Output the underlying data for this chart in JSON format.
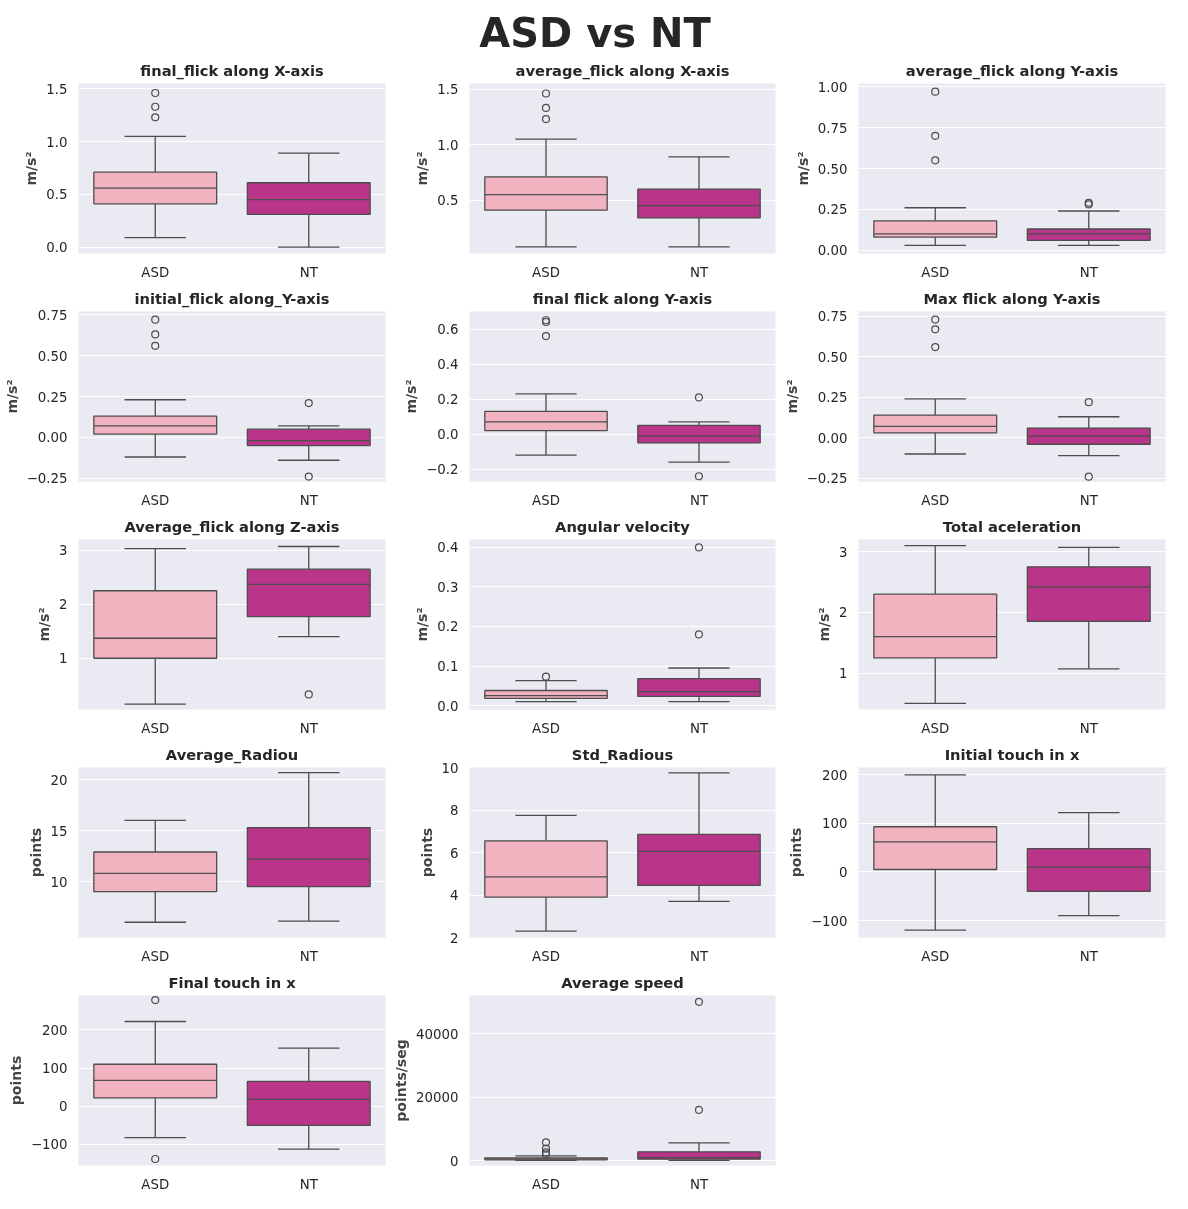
{
  "chart_data": [
    {
      "type": "other",
      "title": "ASD vs NT"
    },
    {
      "type": "box",
      "title": "final_flick along X-axis",
      "ylabel": "m/s²",
      "categories": [
        "ASD",
        "NT"
      ],
      "colors": [
        "#f2b3c0",
        "#b83589"
      ],
      "grid": "y",
      "ylim": [
        -0.06,
        1.55
      ],
      "yticks": [
        {
          "value": 0,
          "label": "0.0"
        },
        0.5,
        {
          "value": 1,
          "label": "1.0"
        },
        1.5
      ],
      "boxes": [
        {
          "low": 0.09,
          "q1": 0.41,
          "median": 0.56,
          "q3": 0.71,
          "high": 1.05,
          "outliers": [
            1.23,
            1.33,
            1.46
          ]
        },
        {
          "low": 0.0,
          "q1": 0.31,
          "median": 0.45,
          "q3": 0.61,
          "high": 0.89
        }
      ]
    },
    {
      "type": "box",
      "title": "average_flick along X-axis",
      "ylabel": "m/s²",
      "categories": [
        "ASD",
        "NT"
      ],
      "colors": [
        "#f2b3c0",
        "#b83589"
      ],
      "grid": "y",
      "ylim": [
        0.02,
        1.55
      ],
      "yticks": [
        0.5,
        {
          "value": 1,
          "label": "1.0"
        },
        1.5
      ],
      "boxes": [
        {
          "low": 0.08,
          "q1": 0.41,
          "median": 0.55,
          "q3": 0.71,
          "high": 1.05,
          "outliers": [
            1.23,
            1.33,
            1.46
          ]
        },
        {
          "low": 0.08,
          "q1": 0.34,
          "median": 0.45,
          "q3": 0.6,
          "high": 0.89
        }
      ]
    },
    {
      "type": "box",
      "title": "average_flick along Y-axis",
      "ylabel": "m/s²",
      "categories": [
        "ASD",
        "NT"
      ],
      "colors": [
        "#f2b3c0",
        "#b83589"
      ],
      "grid": "y",
      "ylim": [
        -0.02,
        1.02
      ],
      "yticks": [
        {
          "value": 0,
          "label": "0.00"
        },
        0.25,
        {
          "value": 0.5,
          "label": "0.50"
        },
        0.75,
        {
          "value": 1,
          "label": "1.00"
        }
      ],
      "boxes": [
        {
          "low": 0.03,
          "q1": 0.08,
          "median": 0.1,
          "q3": 0.18,
          "high": 0.26,
          "outliers": [
            0.55,
            0.7,
            0.97
          ]
        },
        {
          "low": 0.03,
          "q1": 0.06,
          "median": 0.1,
          "q3": 0.13,
          "high": 0.24,
          "outliers": [
            0.28,
            0.29
          ]
        }
      ]
    },
    {
      "type": "box",
      "title": "initial_flick along_Y-axis",
      "ylabel": "m/s²",
      "categories": [
        "ASD",
        "NT"
      ],
      "colors": [
        "#f2b3c0",
        "#b83589"
      ],
      "grid": "y",
      "ylim": [
        -0.27,
        0.77
      ],
      "yticks": [
        {
          "value": -0.25,
          "label": "−0.25"
        },
        {
          "value": 0,
          "label": "0.00"
        },
        0.25,
        {
          "value": 0.5,
          "label": "0.50"
        },
        0.75
      ],
      "boxes": [
        {
          "low": -0.12,
          "q1": 0.02,
          "median": 0.07,
          "q3": 0.13,
          "high": 0.23,
          "outliers": [
            0.56,
            0.63,
            0.72
          ]
        },
        {
          "low": -0.14,
          "q1": -0.05,
          "median": -0.02,
          "q3": 0.05,
          "high": 0.07,
          "outliers": [
            0.21,
            -0.24
          ]
        }
      ]
    },
    {
      "type": "box",
      "title": "final flick along Y-axis",
      "ylabel": "m/s²",
      "categories": [
        "ASD",
        "NT"
      ],
      "colors": [
        "#f2b3c0",
        "#b83589"
      ],
      "grid": "y",
      "ylim": [
        -0.27,
        0.7
      ],
      "yticks": [
        {
          "value": -0.2,
          "label": "−0.2"
        },
        {
          "value": 0,
          "label": "0.0"
        },
        0.2,
        0.4,
        0.6
      ],
      "boxes": [
        {
          "low": -0.12,
          "q1": 0.02,
          "median": 0.07,
          "q3": 0.13,
          "high": 0.23,
          "outliers": [
            0.56,
            0.64,
            0.65
          ]
        },
        {
          "low": -0.16,
          "q1": -0.05,
          "median": -0.01,
          "q3": 0.05,
          "high": 0.07,
          "outliers": [
            0.21,
            -0.24
          ]
        }
      ]
    },
    {
      "type": "box",
      "title": "Max flick along Y-axis",
      "ylabel": "m/s²",
      "categories": [
        "ASD",
        "NT"
      ],
      "colors": [
        "#f2b3c0",
        "#b83589"
      ],
      "grid": "y",
      "ylim": [
        -0.27,
        0.78
      ],
      "yticks": [
        {
          "value": -0.25,
          "label": "−0.25"
        },
        {
          "value": 0,
          "label": "0.00"
        },
        0.25,
        {
          "value": 0.5,
          "label": "0.50"
        },
        0.75
      ],
      "boxes": [
        {
          "low": -0.1,
          "q1": 0.03,
          "median": 0.07,
          "q3": 0.14,
          "high": 0.24,
          "outliers": [
            0.56,
            0.67,
            0.73
          ]
        },
        {
          "low": -0.11,
          "q1": -0.04,
          "median": 0.01,
          "q3": 0.06,
          "high": 0.13,
          "outliers": [
            0.22,
            -0.24
          ]
        }
      ]
    },
    {
      "type": "box",
      "title": "Average_flick along Z-axis",
      "ylabel": "m/s²",
      "categories": [
        "ASD",
        "NT"
      ],
      "colors": [
        "#f2b3c0",
        "#b83589"
      ],
      "grid": "y",
      "ylim": [
        0.05,
        3.2
      ],
      "yticks": [
        1,
        2,
        3
      ],
      "boxes": [
        {
          "low": 0.15,
          "q1": 1.0,
          "median": 1.37,
          "q3": 2.25,
          "high": 3.03
        },
        {
          "low": 1.4,
          "q1": 1.77,
          "median": 2.37,
          "q3": 2.65,
          "high": 3.07,
          "outliers": [
            0.33
          ]
        }
      ]
    },
    {
      "type": "box",
      "title": "Angular velocity",
      "ylabel": "m/s²",
      "categories": [
        "ASD",
        "NT"
      ],
      "colors": [
        "#f2b3c0",
        "#b83589"
      ],
      "grid": "y",
      "ylim": [
        -0.01,
        0.42
      ],
      "yticks": [
        {
          "value": 0,
          "label": "0.0"
        },
        0.1,
        0.2,
        0.3,
        0.4
      ],
      "boxes": [
        {
          "low": 0.01,
          "q1": 0.018,
          "median": 0.025,
          "q3": 0.038,
          "high": 0.063,
          "outliers": [
            0.073
          ]
        },
        {
          "low": 0.01,
          "q1": 0.023,
          "median": 0.035,
          "q3": 0.068,
          "high": 0.095,
          "outliers": [
            0.18,
            0.4
          ]
        }
      ]
    },
    {
      "type": "box",
      "title": "Total aceleration",
      "ylabel": "m/s²",
      "categories": [
        "ASD",
        "NT"
      ],
      "colors": [
        "#f2b3c0",
        "#b83589"
      ],
      "grid": "y",
      "ylim": [
        0.4,
        3.2
      ],
      "yticks": [
        1,
        2,
        3
      ],
      "boxes": [
        {
          "low": 0.5,
          "q1": 1.25,
          "median": 1.6,
          "q3": 2.3,
          "high": 3.1
        },
        {
          "low": 1.07,
          "q1": 1.85,
          "median": 2.42,
          "q3": 2.75,
          "high": 3.07
        }
      ]
    },
    {
      "type": "box",
      "title": "Average_Radiou",
      "ylabel": "points",
      "categories": [
        "ASD",
        "NT"
      ],
      "colors": [
        "#f2b3c0",
        "#b83589"
      ],
      "grid": "y",
      "ylim": [
        4.5,
        21.2
      ],
      "yticks": [
        10,
        15,
        20
      ],
      "boxes": [
        {
          "low": 6.0,
          "q1": 9.0,
          "median": 10.8,
          "q3": 12.9,
          "high": 16.0
        },
        {
          "low": 6.1,
          "q1": 9.5,
          "median": 12.2,
          "q3": 15.3,
          "high": 20.7
        }
      ]
    },
    {
      "type": "box",
      "title": "Std_Radious",
      "ylabel": "points",
      "categories": [
        "ASD",
        "NT"
      ],
      "colors": [
        "#f2b3c0",
        "#b83589"
      ],
      "grid": "y",
      "ylim": [
        2,
        10
      ],
      "yticks": [
        2,
        4,
        6,
        8,
        10
      ],
      "boxes": [
        {
          "low": 2.3,
          "q1": 3.9,
          "median": 4.85,
          "q3": 6.55,
          "high": 7.75
        },
        {
          "low": 3.7,
          "q1": 4.45,
          "median": 6.05,
          "q3": 6.85,
          "high": 9.75
        }
      ]
    },
    {
      "type": "box",
      "title": "Initial touch in x",
      "ylabel": "points",
      "categories": [
        "ASD",
        "NT"
      ],
      "colors": [
        "#f2b3c0",
        "#b83589"
      ],
      "grid": "y",
      "ylim": [
        -135,
        215
      ],
      "yticks": [
        {
          "value": -100,
          "label": "−100"
        },
        0,
        100,
        200
      ],
      "boxes": [
        {
          "low": -120,
          "q1": 5,
          "median": 62,
          "q3": 93,
          "high": 200
        },
        {
          "low": -90,
          "q1": -40,
          "median": 10,
          "q3": 48,
          "high": 122
        }
      ]
    },
    {
      "type": "box",
      "title": "Final touch in x",
      "ylabel": "points",
      "categories": [
        "ASD",
        "NT"
      ],
      "colors": [
        "#f2b3c0",
        "#b83589"
      ],
      "grid": "y",
      "ylim": [
        -155,
        290
      ],
      "yticks": [
        {
          "value": -100,
          "label": "−100"
        },
        0,
        100,
        200
      ],
      "boxes": [
        {
          "low": -82,
          "q1": 22,
          "median": 68,
          "q3": 110,
          "high": 222,
          "outliers": [
            278,
            -138
          ]
        },
        {
          "low": -112,
          "q1": -50,
          "median": 18,
          "q3": 65,
          "high": 152
        }
      ]
    },
    {
      "type": "box",
      "title": "Average speed",
      "ylabel": "points/seg",
      "categories": [
        "ASD",
        "NT"
      ],
      "colors": [
        "#f2b3c0",
        "#b83589"
      ],
      "grid": "y",
      "ylim": [
        -1500,
        52000
      ],
      "yticks": [
        0,
        20000,
        40000
      ],
      "boxes": [
        {
          "low": 100,
          "q1": 300,
          "median": 600,
          "q3": 900,
          "high": 1500,
          "outliers": [
            2000,
            2600,
            3800,
            5800
          ]
        },
        {
          "low": 100,
          "q1": 500,
          "median": 1000,
          "q3": 2800,
          "high": 5600,
          "outliers": [
            16000,
            50000
          ]
        }
      ]
    }
  ]
}
